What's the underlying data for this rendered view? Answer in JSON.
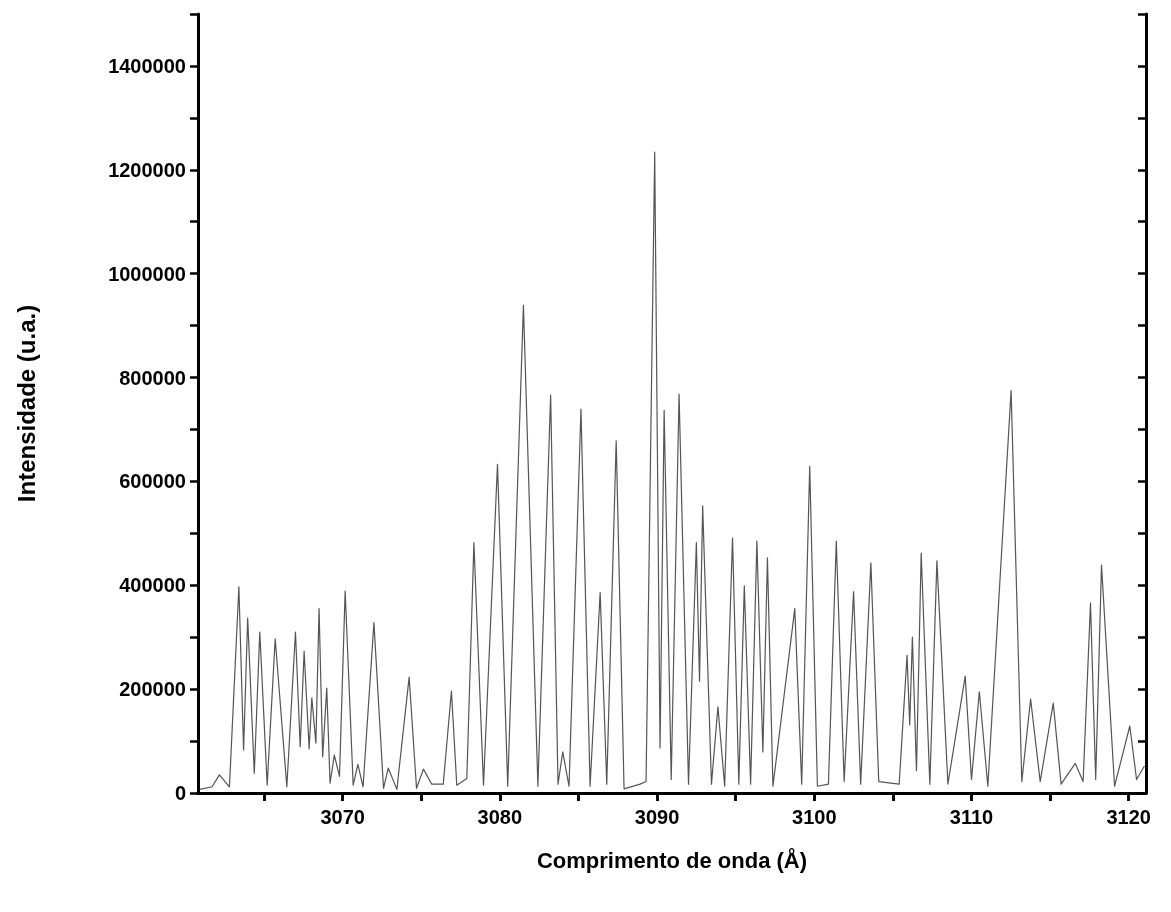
{
  "chart_data": {
    "type": "line",
    "xlabel": "Comprimento de onda (Å)",
    "ylabel": "Intensidade (u.a.)",
    "xlim": [
      3060.8,
      3121.1
    ],
    "ylim": [
      0,
      1500000
    ],
    "xticks": [
      3070,
      3080,
      3090,
      3100,
      3110,
      3120
    ],
    "yticks": [
      0,
      200000,
      400000,
      600000,
      800000,
      1000000,
      1200000,
      1400000
    ],
    "grid": false,
    "marker": "none",
    "line_style": "solid",
    "series": [
      {
        "color": "#555555",
        "x": [
          3060.9,
          3061.7,
          3062.16,
          3062.8,
          3063.4,
          3063.7,
          3063.96,
          3064.38,
          3064.73,
          3065.2,
          3065.71,
          3066.45,
          3067.0,
          3067.3,
          3067.55,
          3067.87,
          3068.04,
          3068.3,
          3068.5,
          3068.73,
          3068.99,
          3069.2,
          3069.47,
          3069.8,
          3070.16,
          3070.67,
          3070.97,
          3071.3,
          3071.99,
          3072.6,
          3072.9,
          3073.45,
          3074.23,
          3074.7,
          3075.14,
          3075.67,
          3076.4,
          3076.92,
          3077.26,
          3077.9,
          3078.35,
          3078.96,
          3079.85,
          3080.5,
          3081.5,
          3082.42,
          3083.23,
          3083.7,
          3084.0,
          3084.4,
          3085.16,
          3085.74,
          3086.38,
          3086.8,
          3087.4,
          3087.9,
          3088.92,
          3089.3,
          3089.85,
          3090.19,
          3090.45,
          3090.9,
          3091.4,
          3092.0,
          3092.5,
          3092.7,
          3092.9,
          3093.46,
          3093.87,
          3094.3,
          3094.8,
          3095.2,
          3095.55,
          3095.95,
          3096.35,
          3096.73,
          3097.02,
          3097.37,
          3098.76,
          3099.2,
          3099.71,
          3100.2,
          3100.9,
          3101.4,
          3101.9,
          3102.5,
          3102.95,
          3103.6,
          3104.1,
          3105.4,
          3105.9,
          3106.07,
          3106.24,
          3106.5,
          3106.8,
          3107.35,
          3107.8,
          3108.5,
          3109.6,
          3110.0,
          3110.5,
          3111.04,
          3112.52,
          3113.2,
          3113.76,
          3114.37,
          3115.2,
          3115.7,
          3116.6,
          3117.1,
          3117.57,
          3117.9,
          3118.27,
          3119.1,
          3120.07,
          3120.5,
          3121.0
        ],
        "values": [
          7000,
          12000,
          35000,
          12000,
          397000,
          83000,
          337000,
          38000,
          310000,
          15000,
          297000,
          12000,
          310000,
          89000,
          273000,
          85000,
          183000,
          96000,
          355000,
          70000,
          202000,
          19000,
          73000,
          32000,
          389000,
          15000,
          55000,
          12000,
          328000,
          9000,
          48000,
          7000,
          223000,
          9000,
          46000,
          17000,
          17000,
          196000,
          15000,
          28000,
          482000,
          15000,
          633000,
          13000,
          939000,
          13000,
          766000,
          17000,
          79000,
          13000,
          739000,
          13000,
          386000,
          17000,
          678000,
          8000,
          17000,
          22000,
          1234000,
          87000,
          737000,
          26000,
          768000,
          17000,
          482000,
          215000,
          553000,
          17000,
          166000,
          13000,
          491000,
          17000,
          399000,
          17000,
          485000,
          79000,
          453000,
          13000,
          355000,
          17000,
          629000,
          13000,
          17000,
          485000,
          22000,
          388000,
          17000,
          443000,
          22000,
          17000,
          265000,
          131000,
          300000,
          43000,
          462000,
          17000,
          447000,
          17000,
          225000,
          26000,
          195000,
          13000,
          775000,
          22000,
          181000,
          22000,
          173000,
          17000,
          57000,
          22000,
          366000,
          26000,
          439000,
          13000,
          129000,
          26000,
          52000
        ]
      }
    ]
  }
}
